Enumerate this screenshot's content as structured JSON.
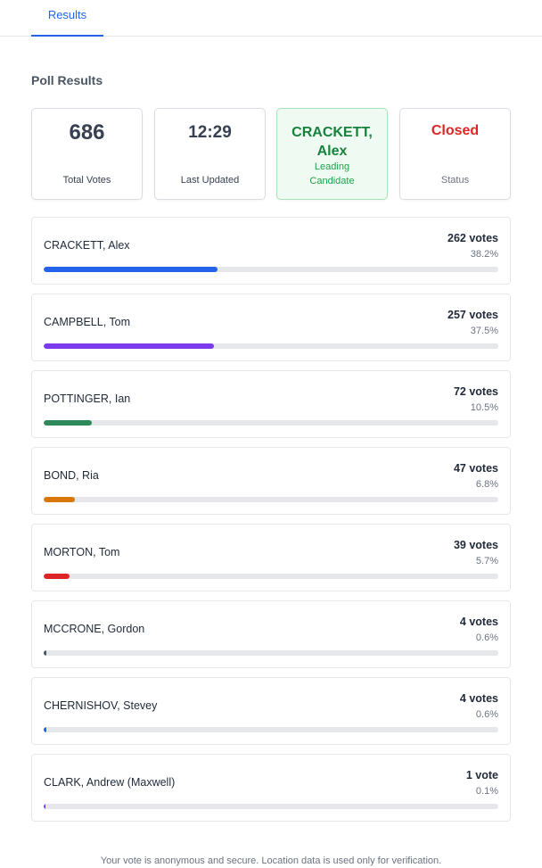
{
  "tabs": [
    {
      "label": "Results",
      "active": true
    }
  ],
  "section_title": "Poll Results",
  "stats": {
    "total_votes": {
      "value": "686",
      "label": "Total Votes"
    },
    "last_updated": {
      "value": "12:29",
      "label": "Last Updated"
    },
    "leading": {
      "value_line1": "CRACKETT,",
      "value_line2": "Alex",
      "label_line1": "Leading",
      "label_line2": "Candidate"
    },
    "status": {
      "value": "Closed",
      "label": "Status"
    }
  },
  "candidates": [
    {
      "name": "CRACKETT, Alex",
      "votes": "262 votes",
      "pct": "38.2%",
      "share": 38.2,
      "color": "#2563eb"
    },
    {
      "name": "CAMPBELL, Tom",
      "votes": "257 votes",
      "pct": "37.5%",
      "share": 37.5,
      "color": "#7c3aed"
    },
    {
      "name": "POTTINGER, Ian",
      "votes": "72 votes",
      "pct": "10.5%",
      "share": 10.5,
      "color": "#2f8a5b"
    },
    {
      "name": "BOND, Ria",
      "votes": "47 votes",
      "pct": "6.8%",
      "share": 6.8,
      "color": "#d97706"
    },
    {
      "name": "MORTON, Tom",
      "votes": "39 votes",
      "pct": "5.7%",
      "share": 5.7,
      "color": "#dc2626"
    },
    {
      "name": "MCCRONE, Gordon",
      "votes": "4 votes",
      "pct": "0.6%",
      "share": 0.6,
      "color": "#4b5563"
    },
    {
      "name": "CHERNISHOV, Stevey",
      "votes": "4 votes",
      "pct": "0.6%",
      "share": 0.6,
      "color": "#2563eb"
    },
    {
      "name": "CLARK, Andrew (Maxwell)",
      "votes": "1 vote",
      "pct": "0.1%",
      "share": 0.1,
      "color": "#7c3aed"
    }
  ],
  "footer": "Your vote is anonymous and secure. Location data is used only for verification."
}
